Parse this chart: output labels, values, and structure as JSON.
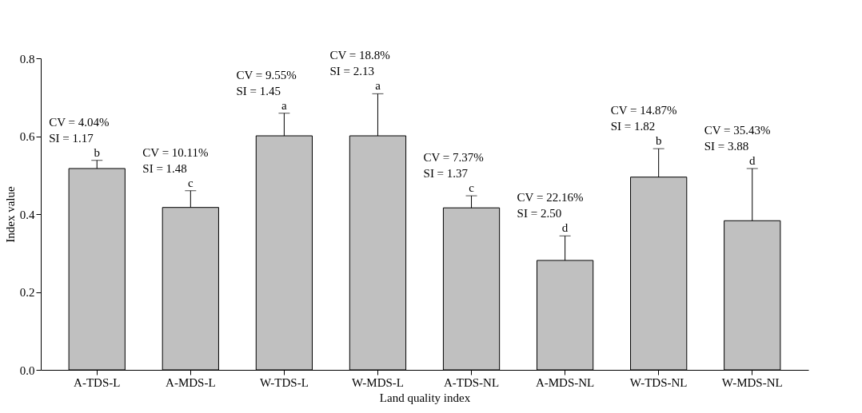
{
  "chart_data": {
    "type": "bar",
    "xlabel": "Land quality index",
    "ylabel": "Index value",
    "categories": [
      "A-TDS-L",
      "A-MDS-L",
      "W-TDS-L",
      "W-MDS-L",
      "A-TDS-NL",
      "A-MDS-NL",
      "W-TDS-NL",
      "W-MDS-NL"
    ],
    "values": [
      0.517,
      0.417,
      0.601,
      0.601,
      0.416,
      0.281,
      0.495,
      0.383
    ],
    "errors": [
      0.021,
      0.043,
      0.058,
      0.108,
      0.031,
      0.063,
      0.073,
      0.134
    ],
    "color": "#c0c0c0",
    "ylim": [
      0,
      0.8
    ],
    "yticks": [
      {
        "value": 0,
        "label": "0.0"
      },
      0.2,
      0.4,
      0.6,
      0.8
    ],
    "grid": false,
    "annotations": [
      {
        "text": "b",
        "x": "A-TDS-L",
        "y": 0.538
      },
      {
        "text": "c",
        "x": "A-MDS-L",
        "y": 0.46
      },
      {
        "text": "a",
        "x": "W-TDS-L",
        "y": 0.659
      },
      {
        "text": "a",
        "x": "W-MDS-L",
        "y": 0.709
      },
      {
        "text": "c",
        "x": "A-TDS-NL",
        "y": 0.447
      },
      {
        "text": "d",
        "x": "A-MDS-NL",
        "y": 0.344
      },
      {
        "text": "b",
        "x": "W-TDS-NL",
        "y": 0.568
      },
      {
        "text": "d",
        "x": "W-MDS-NL",
        "y": 0.517
      },
      {
        "text": "CV = 4.04%\nSI = 1.17",
        "x": "A-TDS-L",
        "y": 0.538
      },
      {
        "text": "CV = 10.11%\nSI = 1.48",
        "x": "A-MDS-L",
        "y": 0.46
      },
      {
        "text": "CV = 9.55%\nSI = 1.45",
        "x": "W-TDS-L",
        "y": 0.659
      },
      {
        "text": "CV = 18.8%\nSI = 2.13",
        "x": "W-MDS-L",
        "y": 0.709
      },
      {
        "text": "CV = 7.37%\nSI = 1.37",
        "x": "A-TDS-NL",
        "y": 0.447
      },
      {
        "text": "CV = 22.16%\nSI = 2.50",
        "x": "A-MDS-NL",
        "y": 0.344
      },
      {
        "text": "CV = 14.87%\nSI = 1.82",
        "x": "W-TDS-NL",
        "y": 0.568
      },
      {
        "text": "CV = 35.43%\nSI = 3.88",
        "x": "W-MDS-NL",
        "y": 0.517
      }
    ]
  }
}
